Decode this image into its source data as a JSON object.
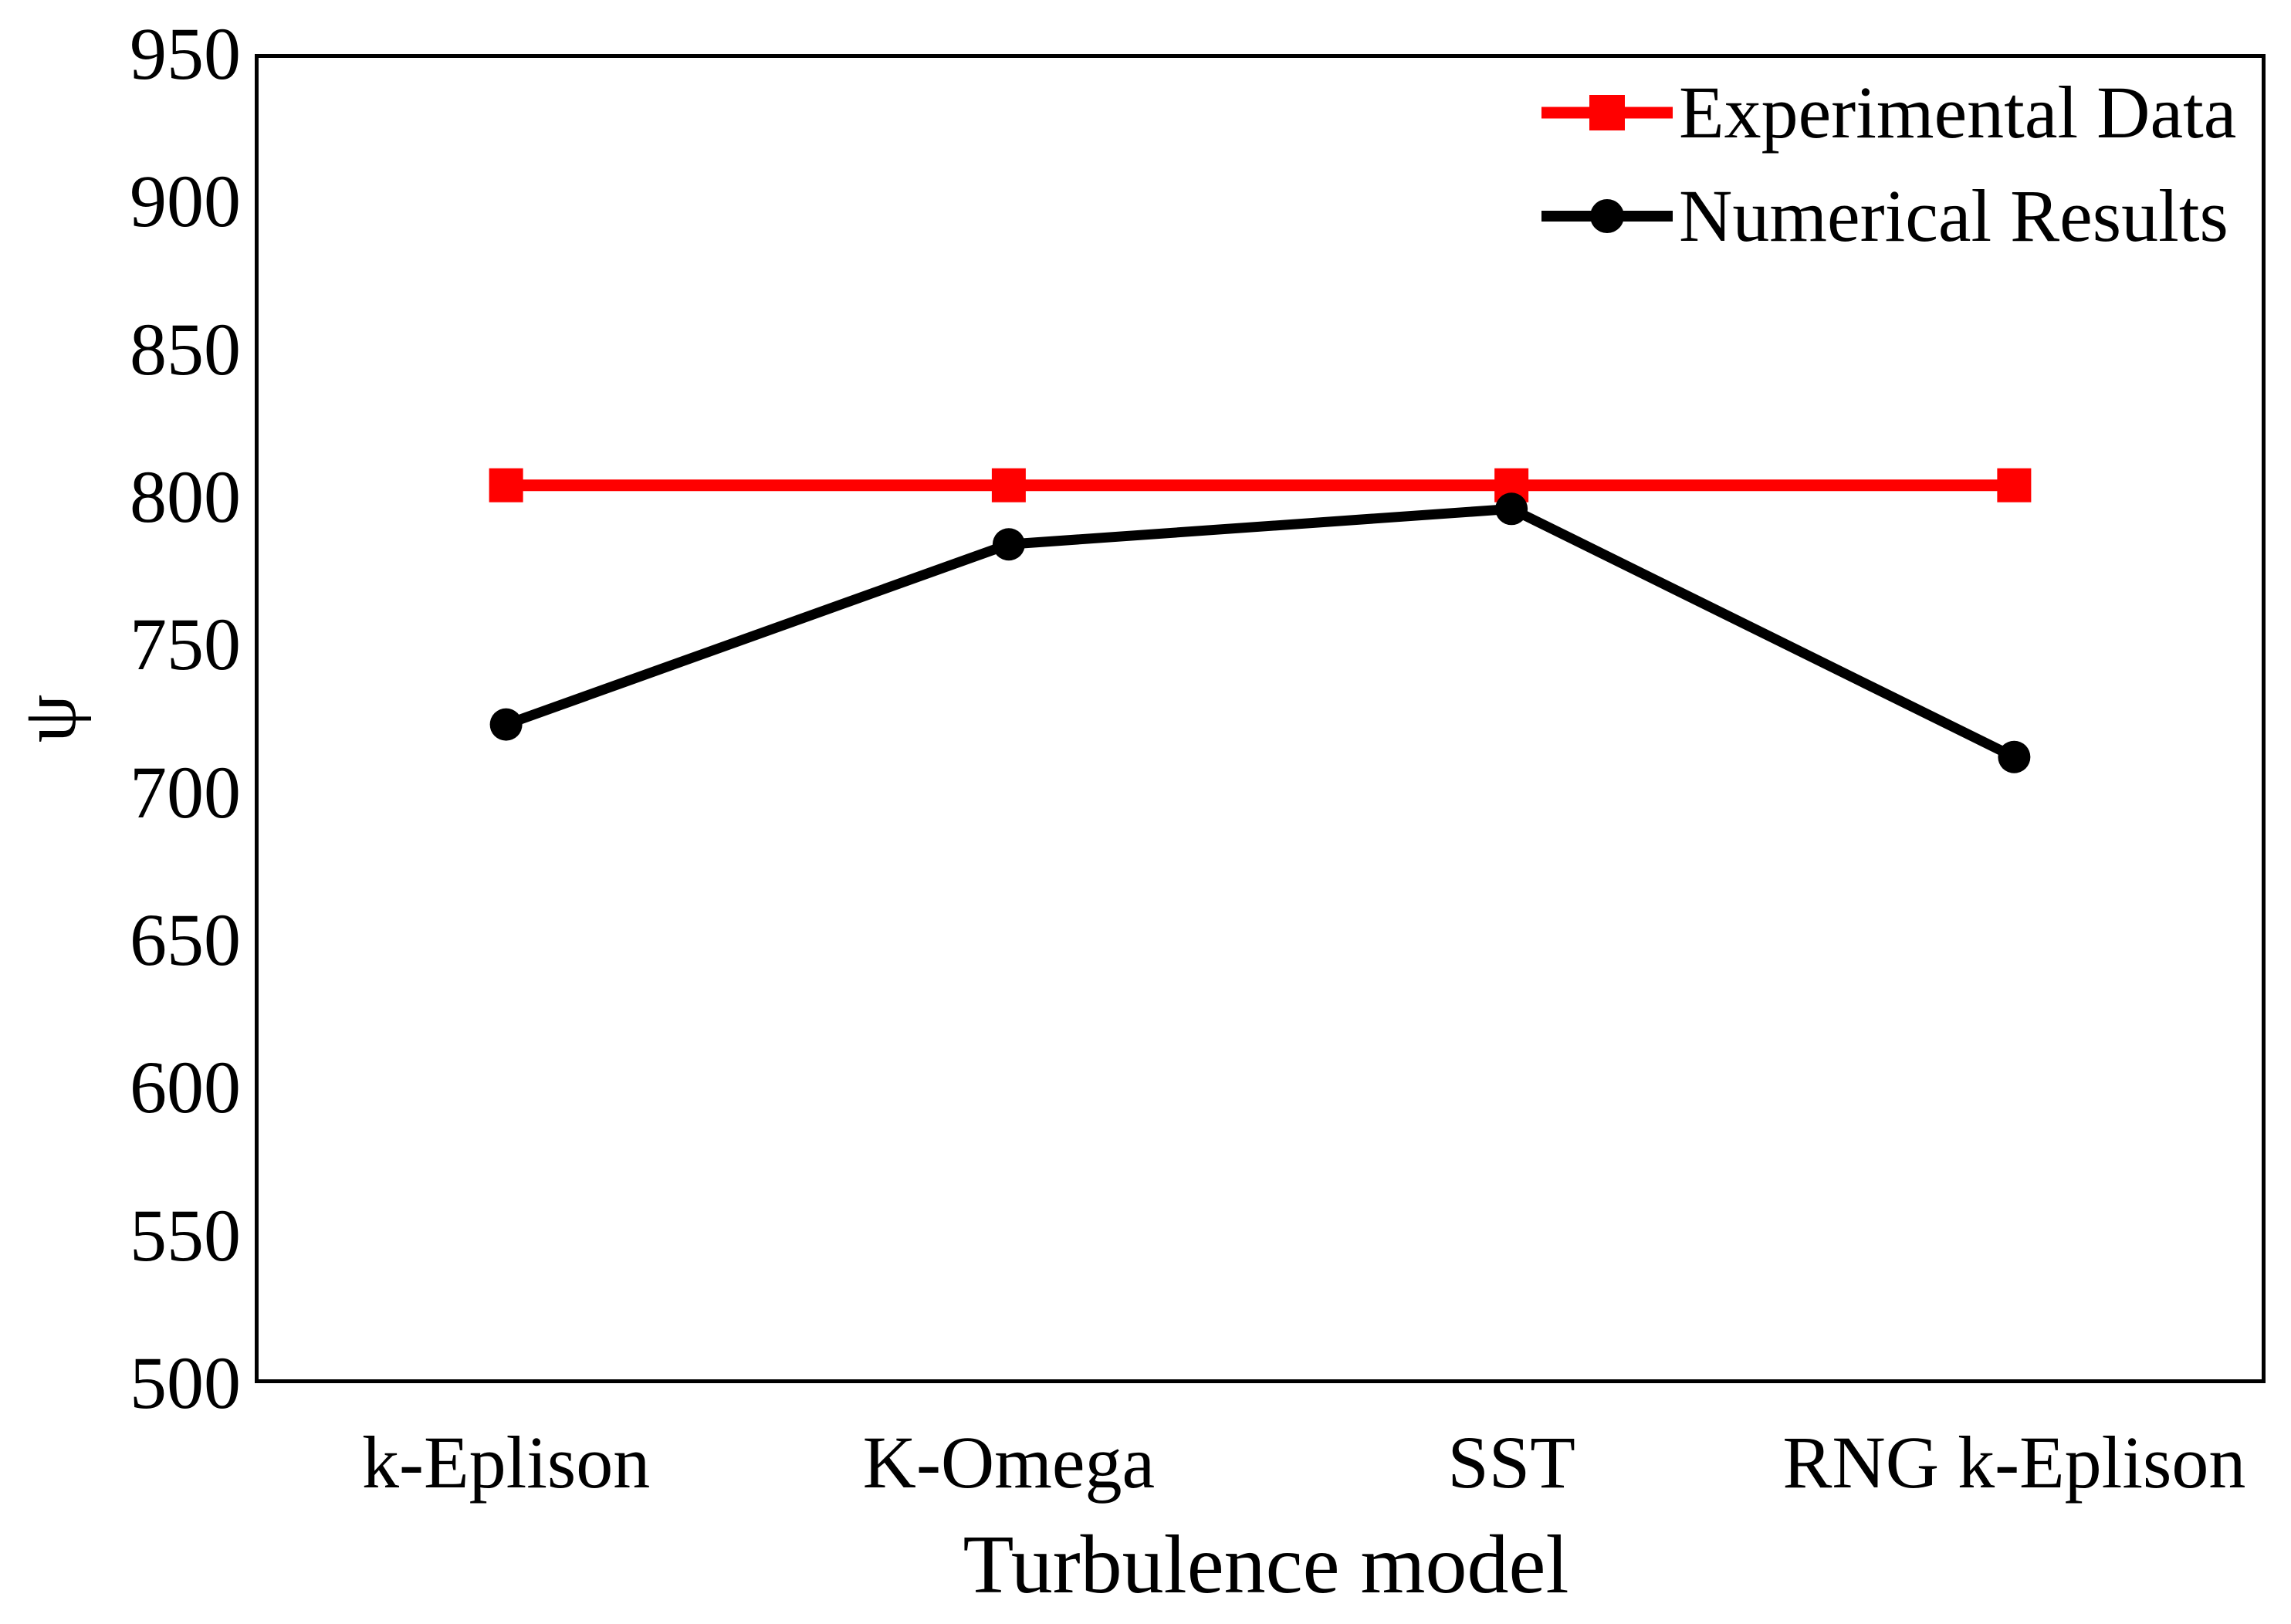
{
  "figure": {
    "background_color": "#ffffff",
    "text_color": "#000000"
  },
  "chart_data": {
    "type": "line",
    "title": "",
    "xlabel": "Turbulence model",
    "ylabel": "ψ",
    "categories": [
      "k-Eplison",
      "K-Omega",
      "SST",
      "RNG k-Eplison"
    ],
    "series": [
      {
        "name": "Experimental Data",
        "color": "#ff0000",
        "marker": "square",
        "line_width": 15,
        "values": [
          804,
          804,
          804,
          804
        ]
      },
      {
        "name": "Numerical Results",
        "color": "#000000",
        "marker": "circle",
        "line_width": 13,
        "values": [
          723,
          784,
          796,
          712
        ]
      }
    ],
    "ylim": [
      500,
      950
    ],
    "yticks": [
      950,
      900,
      850,
      800,
      750,
      700,
      650,
      600,
      550,
      500
    ],
    "ytick_step": 50,
    "grid": false,
    "plot_border": true,
    "legend_position": "top-right"
  }
}
